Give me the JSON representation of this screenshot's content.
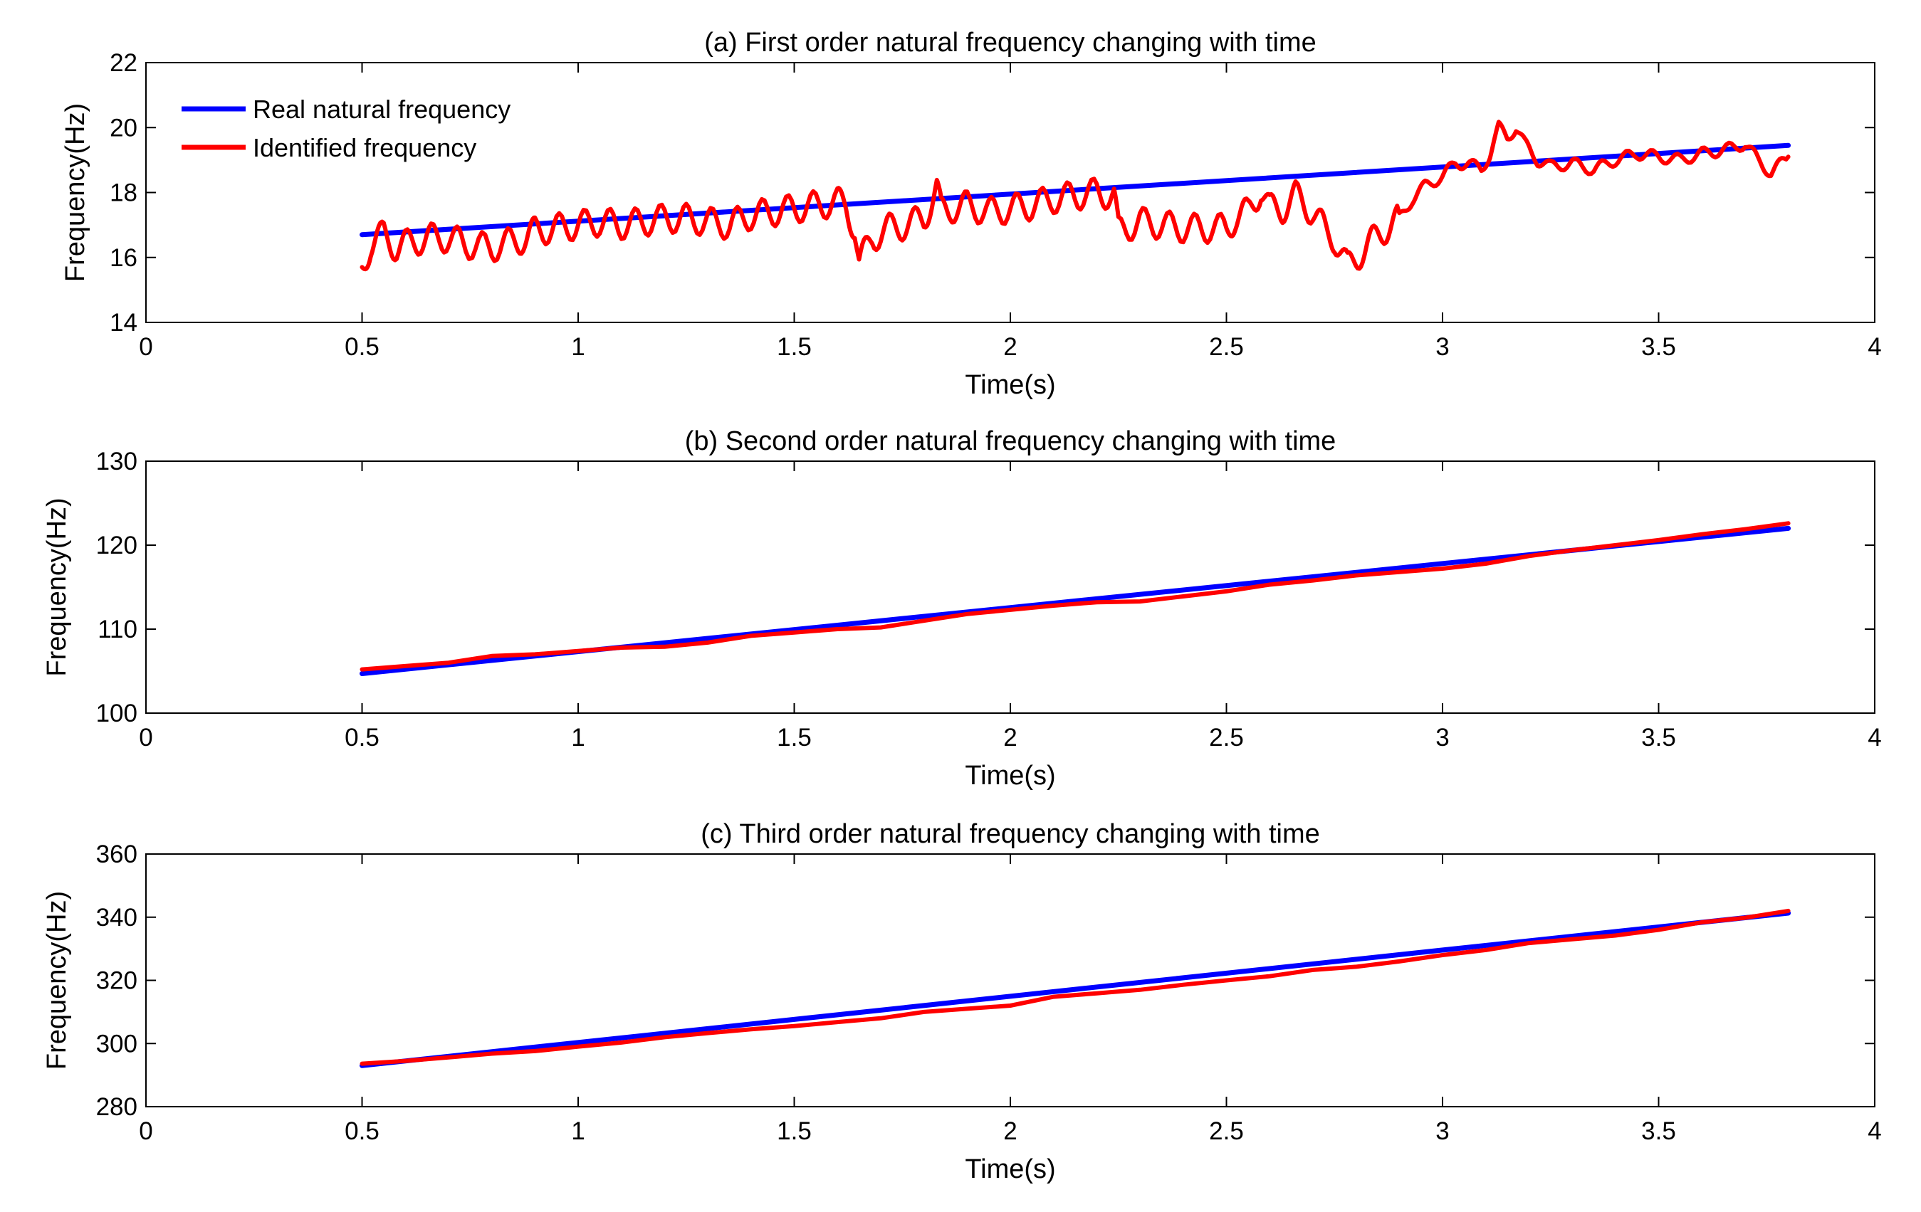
{
  "colors": {
    "real": "#0000ff",
    "identified": "#ff0000",
    "axis": "#000000",
    "background": "#ffffff"
  },
  "legend": {
    "real_label": "Real natural frequency",
    "identified_label": "Identified frequency",
    "placement": "top-left"
  },
  "chart_data": [
    {
      "type": "line",
      "title": "(a) First order natural frequency changing with time",
      "xlabel": "Time(s)",
      "ylabel": "Frequency(Hz)",
      "xlim": [
        0,
        4
      ],
      "ylim": [
        14,
        22
      ],
      "xticks": [
        0,
        0.5,
        1,
        1.5,
        2,
        2.5,
        3,
        3.5,
        4
      ],
      "xtick_labels": [
        "0",
        "0.5",
        "1",
        "1.5",
        "2",
        "2.5",
        "3",
        "3.5",
        "4"
      ],
      "yticks": [
        14,
        16,
        18,
        20,
        22
      ],
      "ytick_labels": [
        "14",
        "16",
        "18",
        "20",
        "22"
      ],
      "grid": false,
      "show_legend": true,
      "series": [
        {
          "name": "Real natural frequency",
          "color": "#0000ff",
          "x": [
            0.5,
            3.8
          ],
          "y": [
            16.7,
            19.45
          ]
        },
        {
          "name": "Identified frequency",
          "color": "#ff0000",
          "oscillating": true,
          "x": [
            0.5,
            0.52,
            0.55,
            0.58,
            0.62,
            0.66,
            0.7,
            0.74,
            0.8,
            0.85,
            0.88,
            0.9,
            0.95,
            1.0,
            1.05,
            1.1,
            1.15,
            1.2,
            1.25,
            1.3,
            1.35,
            1.4,
            1.45,
            1.5,
            1.55,
            1.6,
            1.62,
            1.64,
            1.65,
            1.68,
            1.72,
            1.76,
            1.8,
            1.83,
            1.84,
            1.86,
            1.9,
            1.95,
            2.0,
            2.05,
            2.1,
            2.15,
            2.2,
            2.24,
            2.25,
            2.3,
            2.35,
            2.4,
            2.45,
            2.5,
            2.52,
            2.55,
            2.58,
            2.6,
            2.63,
            2.66,
            2.7,
            2.73,
            2.75,
            2.78,
            2.8,
            2.83,
            2.86,
            2.9,
            2.93,
            2.96,
            3.0,
            3.03,
            3.06,
            3.09,
            3.11,
            3.13,
            3.15,
            3.17,
            3.19,
            3.22,
            3.25,
            3.3,
            3.35,
            3.4,
            3.45,
            3.5,
            3.55,
            3.6,
            3.65,
            3.7,
            3.73,
            3.76,
            3.8
          ],
          "y": [
            15.7,
            16.4,
            16.7,
            16.3,
            16.5,
            16.6,
            16.6,
            16.4,
            16.3,
            16.5,
            16.6,
            16.8,
            16.9,
            17.0,
            17.1,
            17.0,
            17.1,
            17.2,
            17.2,
            17.1,
            17.0,
            17.3,
            17.4,
            17.5,
            17.6,
            17.7,
            17.6,
            16.9,
            15.8,
            16.6,
            16.9,
            17.0,
            17.2,
            18.1,
            17.4,
            17.5,
            17.6,
            17.4,
            17.5,
            17.6,
            17.8,
            17.9,
            18.0,
            17.9,
            16.8,
            17.1,
            17.0,
            16.9,
            16.9,
            16.9,
            17.2,
            17.4,
            18.1,
            17.5,
            17.5,
            17.9,
            17.4,
            16.8,
            16.6,
            15.7,
            16.0,
            16.4,
            16.8,
            17.2,
            17.8,
            18.2,
            18.5,
            18.9,
            18.9,
            18.7,
            19.2,
            20.0,
            19.7,
            20.0,
            19.5,
            19.0,
            18.8,
            18.9,
            18.7,
            19.0,
            19.2,
            19.1,
            19.0,
            19.2,
            19.3,
            19.5,
            19.0,
            18.6,
            19.1
          ]
        }
      ]
    },
    {
      "type": "line",
      "title": "(b) Second order natural frequency changing with time",
      "xlabel": "Time(s)",
      "ylabel": "Frequency(Hz)",
      "xlim": [
        0,
        4
      ],
      "ylim": [
        100,
        130
      ],
      "xticks": [
        0,
        0.5,
        1,
        1.5,
        2,
        2.5,
        3,
        3.5,
        4
      ],
      "xtick_labels": [
        "0",
        "0.5",
        "1",
        "1.5",
        "2",
        "2.5",
        "3",
        "3.5",
        "4"
      ],
      "yticks": [
        100,
        110,
        120,
        130
      ],
      "ytick_labels": [
        "100",
        "110",
        "120",
        "130"
      ],
      "grid": false,
      "show_legend": false,
      "series": [
        {
          "name": "Real natural frequency",
          "color": "#0000ff",
          "x": [
            0.5,
            3.8
          ],
          "y": [
            104.7,
            122.0
          ]
        },
        {
          "name": "Identified frequency",
          "color": "#ff0000",
          "oscillating": false,
          "x": [
            0.5,
            0.6,
            0.7,
            0.8,
            0.9,
            1.0,
            1.1,
            1.2,
            1.3,
            1.4,
            1.5,
            1.6,
            1.7,
            1.8,
            1.9,
            2.0,
            2.1,
            2.2,
            2.3,
            2.4,
            2.5,
            2.6,
            2.7,
            2.8,
            2.9,
            3.0,
            3.1,
            3.2,
            3.3,
            3.4,
            3.5,
            3.6,
            3.7,
            3.8
          ],
          "y": [
            105.2,
            105.6,
            106.0,
            106.8,
            107.0,
            107.4,
            107.8,
            107.9,
            108.4,
            109.2,
            109.6,
            110.0,
            110.2,
            111.0,
            111.8,
            112.3,
            112.8,
            113.2,
            113.3,
            113.9,
            114.5,
            115.3,
            115.8,
            116.4,
            116.8,
            117.2,
            117.8,
            118.7,
            119.4,
            120.0,
            120.6,
            121.3,
            121.9,
            122.6
          ]
        }
      ]
    },
    {
      "type": "line",
      "title": "(c) Third order natural frequency changing with time",
      "xlabel": "Time(s)",
      "ylabel": "Frequency(Hz)",
      "xlim": [
        0,
        4
      ],
      "ylim": [
        280,
        360
      ],
      "xticks": [
        0,
        0.5,
        1,
        1.5,
        2,
        2.5,
        3,
        3.5,
        4
      ],
      "xtick_labels": [
        "0",
        "0.5",
        "1",
        "1.5",
        "2",
        "2.5",
        "3",
        "3.5",
        "4"
      ],
      "yticks": [
        280,
        300,
        320,
        340,
        360
      ],
      "ytick_labels": [
        "280",
        "300",
        "320",
        "340",
        "360"
      ],
      "grid": false,
      "show_legend": false,
      "series": [
        {
          "name": "Real natural frequency",
          "color": "#0000ff",
          "x": [
            0.5,
            3.8
          ],
          "y": [
            293.0,
            341.3
          ]
        },
        {
          "name": "Identified frequency",
          "color": "#ff0000",
          "oscillating": false,
          "x": [
            0.5,
            0.6,
            0.7,
            0.8,
            0.9,
            1.0,
            1.1,
            1.2,
            1.3,
            1.4,
            1.5,
            1.6,
            1.7,
            1.8,
            1.9,
            2.0,
            2.1,
            2.2,
            2.3,
            2.4,
            2.5,
            2.6,
            2.7,
            2.8,
            2.9,
            3.0,
            3.1,
            3.2,
            3.3,
            3.4,
            3.5,
            3.6,
            3.7,
            3.8
          ],
          "y": [
            293.6,
            294.5,
            295.6,
            296.8,
            297.6,
            299.0,
            300.3,
            302.0,
            303.3,
            304.5,
            305.5,
            306.8,
            308.0,
            310.0,
            311.0,
            312.0,
            314.8,
            315.9,
            317.0,
            318.6,
            320.0,
            321.3,
            323.3,
            324.3,
            326.0,
            328.0,
            329.6,
            331.8,
            333.0,
            334.2,
            336.0,
            338.4,
            339.8,
            342.0
          ]
        }
      ]
    }
  ]
}
